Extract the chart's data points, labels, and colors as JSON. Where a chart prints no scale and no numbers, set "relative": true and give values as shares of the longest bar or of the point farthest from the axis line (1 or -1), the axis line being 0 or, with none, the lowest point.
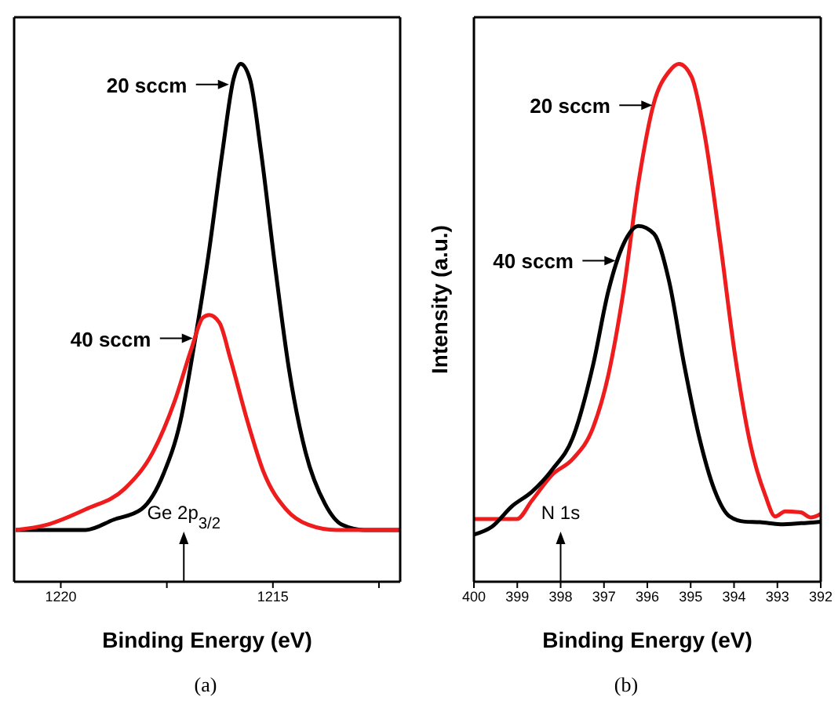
{
  "chart_data": [
    {
      "type": "line",
      "xlabel": "Binding Energy (eV)",
      "relative": true,
      "xlim": [
        1221.1,
        1212
      ],
      "xticks": [
        1220,
        {
          "value": 1217.5,
          "label": null
        },
        1215,
        {
          "value": 1212.5,
          "label": null
        }
      ],
      "series": [
        {
          "color": "#000000",
          "x": [
            1221.06,
            1220.59,
            1219.41,
            1218.75,
            1218.1,
            1217.57,
            1217.18,
            1216.85,
            1216.52,
            1216.19,
            1215.93,
            1215.76,
            1215.54,
            1215.28,
            1214.95,
            1214.62,
            1214.23,
            1213.77,
            1213.37,
            1212.85,
            1212.02
          ],
          "values": [
            0.1,
            0.1,
            0.1,
            0.12,
            0.14,
            0.21,
            0.31,
            0.46,
            0.63,
            0.83,
            0.97,
            1.0,
            0.97,
            0.83,
            0.61,
            0.41,
            0.25,
            0.15,
            0.11,
            0.1,
            0.1
          ]
        },
        {
          "color": "#ee1c1c",
          "x": [
            1221.06,
            1220.33,
            1219.41,
            1218.49,
            1217.83,
            1217.31,
            1216.92,
            1216.65,
            1216.5,
            1216.26,
            1216.0,
            1215.6,
            1215.21,
            1214.69,
            1214.16,
            1213.5,
            1212.02
          ],
          "values": [
            0.1,
            0.11,
            0.14,
            0.18,
            0.25,
            0.35,
            0.45,
            0.51,
            0.515,
            0.5,
            0.43,
            0.31,
            0.21,
            0.14,
            0.11,
            0.1,
            0.1
          ]
        }
      ],
      "ref_lines": [
        {
          "axis": "x",
          "value": 1217.1,
          "label": "Ge 2p$_{3/2}$"
        }
      ],
      "annotations": [
        {
          "text": "20 sccm",
          "x": 1216.0,
          "y": 0.96
        },
        {
          "text": "40 sccm",
          "x": 1216.85,
          "y": 0.47
        },
        "(a)"
      ]
    },
    {
      "type": "line",
      "xlabel": "Binding Energy (eV)",
      "ylabel": "Intensity (a.u.)",
      "relative": true,
      "xlim": [
        400,
        392
      ],
      "xticks": [
        400,
        399,
        398,
        397,
        396,
        395,
        394,
        393,
        392
      ],
      "series": [
        {
          "color": "#ee1c1c",
          "x": [
            400,
            399.01,
            398.66,
            398.19,
            397.72,
            397.25,
            396.9,
            396.55,
            396.2,
            395.85,
            395.5,
            395.27,
            394.98,
            394.68,
            394.33,
            393.98,
            393.63,
            393.28,
            393.05,
            392.82,
            392.46,
            392.23,
            392
          ],
          "values": [
            0.121,
            0.121,
            0.157,
            0.207,
            0.237,
            0.298,
            0.399,
            0.561,
            0.773,
            0.924,
            0.985,
            1.0,
            0.975,
            0.864,
            0.662,
            0.439,
            0.268,
            0.167,
            0.126,
            0.136,
            0.134,
            0.124,
            0.131
          ]
        },
        {
          "color": "#000000",
          "x": [
            400,
            399.59,
            399.12,
            398.66,
            398.19,
            397.72,
            397.25,
            396.9,
            396.55,
            396.2,
            395.85,
            395.5,
            395.15,
            394.8,
            394.45,
            394.1,
            393.75,
            393.4,
            392.93,
            392.46,
            392
          ],
          "values": [
            0.091,
            0.106,
            0.146,
            0.174,
            0.217,
            0.278,
            0.419,
            0.561,
            0.652,
            0.687,
            0.672,
            0.581,
            0.419,
            0.278,
            0.177,
            0.126,
            0.116,
            0.115,
            0.111,
            0.113,
            0.116
          ]
        }
      ],
      "ref_lines": [
        {
          "axis": "x",
          "value": 398,
          "label": "N 1s"
        }
      ],
      "annotations": [
        {
          "text": "20 sccm",
          "x": 395.85,
          "y": 0.92
        },
        {
          "text": "40 sccm",
          "x": 396.7,
          "y": 0.62
        },
        "(b)"
      ]
    }
  ]
}
